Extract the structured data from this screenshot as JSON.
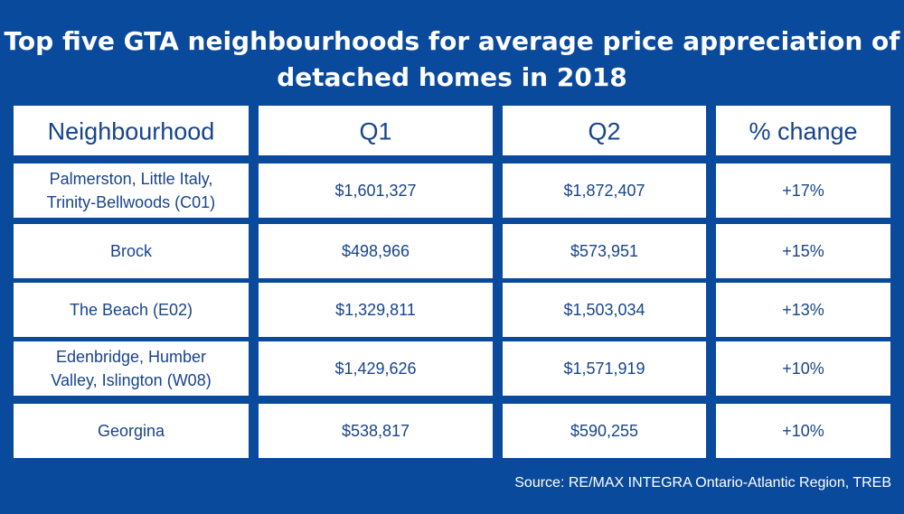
{
  "title_line_1": "Top five GTA neighbourhoods for average price appreciation of",
  "title_line_2": "detached homes in 2018",
  "source": "Source:  RE/MAX INTEGRA Ontario-Atlantic Region, TREB",
  "colors": {
    "background": "#0a4a9c",
    "cell": "#ffffff",
    "text": "#17448c"
  },
  "chart_data": {
    "type": "table",
    "title": "Top five GTA neighbourhoods for average price appreciation of detached homes in 2018",
    "columns": [
      "Neighbourhood",
      "Q1",
      "Q2",
      "% change"
    ],
    "rows": [
      {
        "neighbourhood": [
          "Palmerston, Little Italy,",
          "Trinity-Bellwoods (C01)"
        ],
        "q1": "$1,601,327",
        "q2": "$1,872,407",
        "change": "+17%"
      },
      {
        "neighbourhood": [
          "Brock"
        ],
        "q1": "$498,966",
        "q2": "$573,951",
        "change": "+15%"
      },
      {
        "neighbourhood": [
          "The Beach (E02)"
        ],
        "q1": "$1,329,811",
        "q2": "$1,503,034",
        "change": "+13%"
      },
      {
        "neighbourhood": [
          "Edenbridge, Humber",
          "Valley, Islington (W08)"
        ],
        "q1": "$1,429,626",
        "q2": "$1,571,919",
        "change": "+10%"
      },
      {
        "neighbourhood": [
          "Georgina"
        ],
        "q1": "$538,817",
        "q2": "$590,255",
        "change": "+10%"
      }
    ]
  }
}
